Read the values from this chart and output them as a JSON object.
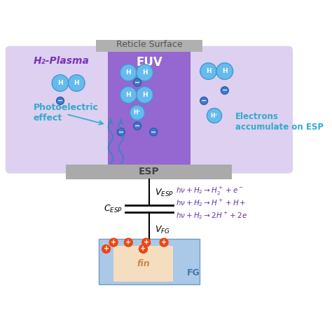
{
  "title": "Reticle Surface",
  "bg_color": "#ffffff",
  "plasma_color": "#ddd0f0",
  "euv_color": "#8855cc",
  "euv_light_color": "#9966dd",
  "esp_color": "#aaaaaa",
  "fg_outer_color": "#aac8e8",
  "fg_inner_color": "#f5ddc0",
  "reticle_color": "#b0b0b0",
  "h2_plasma_label": "H₂-Plasma",
  "euv_label": "EUV",
  "esp_label": "ESP",
  "fg_label": "FG",
  "fin_label": "fin",
  "photoelectric_label": "Photoelectric\neffect",
  "electrons_label": "Electrons\naccumulate on ESP",
  "v_esp_label": "Vₛₛₗ",
  "c_esp_label": "Cₛₚₗ",
  "v_fg_label": "Vᶠᴳ",
  "eq1": "hν + H₂ → H₂⁺ + e⁻",
  "eq2": "hν + H₂ → H⁺ + H +",
  "eq3": "hν + H₂ → 2H⁺ + 2e",
  "charge_color": "#cc3300",
  "atom_color": "#66bbee",
  "atom_border": "#4499cc",
  "electron_color": "#3366cc",
  "arrow_color": "#3399cc"
}
